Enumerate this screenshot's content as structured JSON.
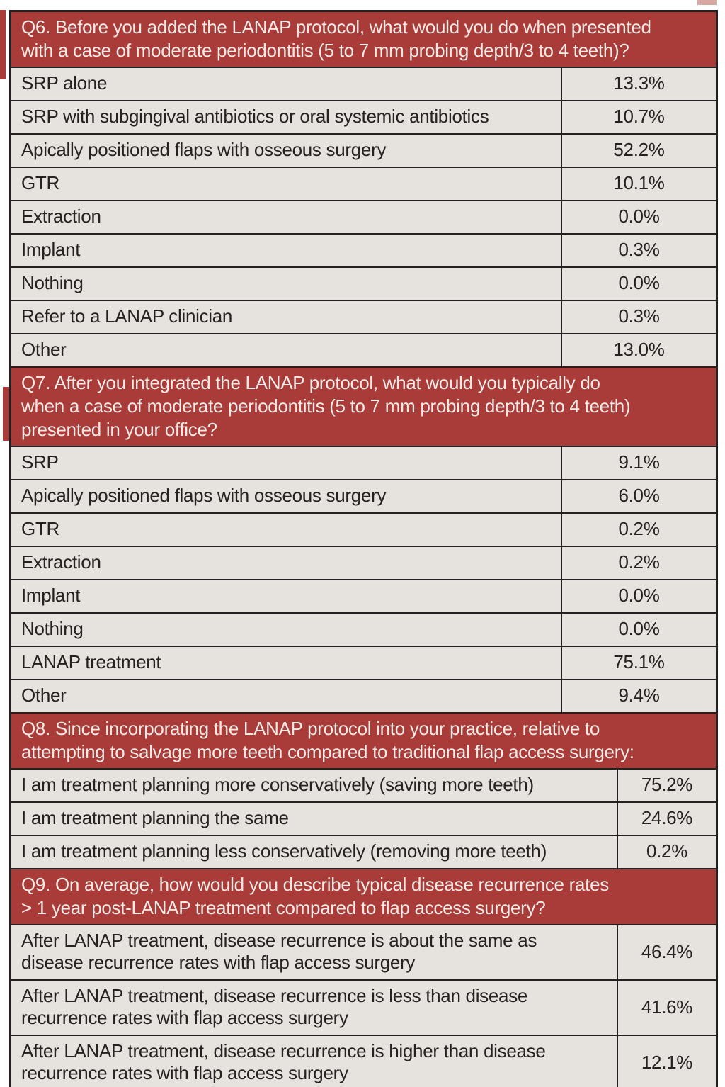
{
  "colors": {
    "header_bg": "#a93b38",
    "header_text": "#f3eae6",
    "row_bg": "#e6e2dd",
    "body_text": "#252220",
    "border": "#242021"
  },
  "table": {
    "sections": [
      {
        "id": "q6",
        "question_number": "Q6.",
        "question_text": "Before you added the LANAP protocol, what would you do when presented\nwith a case of moderate periodontitis (5 to 7 mm probing depth/3 to 4 teeth)?",
        "rows": [
          {
            "label": "SRP alone",
            "value": "13.3%"
          },
          {
            "label": "SRP with subgingival antibiotics or oral systemic antibiotics",
            "value": "10.7%"
          },
          {
            "label": "Apically positioned flaps with osseous surgery",
            "value": "52.2%"
          },
          {
            "label": "GTR",
            "value": "10.1%"
          },
          {
            "label": "Extraction",
            "value": "0.0%"
          },
          {
            "label": "Implant",
            "value": "0.3%"
          },
          {
            "label": "Nothing",
            "value": "0.0%"
          },
          {
            "label": "Refer to a LANAP clinician",
            "value": "0.3%"
          },
          {
            "label": "Other",
            "value": "13.0%"
          }
        ]
      },
      {
        "id": "q7",
        "question_number": "Q7.",
        "question_text": "After you integrated the LANAP protocol, what would you typically do\nwhen a case of moderate periodontitis (5 to 7 mm probing depth/3 to 4 teeth)\npresented in your office?",
        "rows": [
          {
            "label": "SRP",
            "value": "9.1%"
          },
          {
            "label": "Apically positioned flaps with osseous surgery",
            "value": "6.0%"
          },
          {
            "label": "GTR",
            "value": "0.2%"
          },
          {
            "label": "Extraction",
            "value": "0.2%"
          },
          {
            "label": "Implant",
            "value": "0.0%"
          },
          {
            "label": "Nothing",
            "value": "0.0%"
          },
          {
            "label": "LANAP treatment",
            "value": "75.1%"
          },
          {
            "label": "Other",
            "value": "9.4%"
          }
        ]
      },
      {
        "id": "q8",
        "question_number": "Q8.",
        "question_text": "Since incorporating the LANAP protocol into your practice, relative to\nattempting to salvage more teeth compared to traditional flap access surgery:",
        "rows": [
          {
            "label": "I am treatment planning more conservatively (saving more teeth)",
            "value": "75.2%"
          },
          {
            "label": "I am treatment planning the same",
            "value": "24.6%"
          },
          {
            "label": "I am treatment planning less conservatively (removing more teeth)",
            "value": "0.2%"
          }
        ]
      },
      {
        "id": "q9",
        "question_number": "Q9.",
        "question_text": "On average, how would you describe typical disease recurrence rates\n> 1 year post-LANAP treatment compared to flap access surgery?",
        "rows": [
          {
            "label": "After LANAP treatment, disease recurrence is about the same as\ndisease recurrence rates with flap access surgery",
            "value": "46.4%"
          },
          {
            "label": "After LANAP treatment, disease recurrence is less than disease\nrecurrence rates with flap access surgery",
            "value": "41.6%"
          },
          {
            "label": "After LANAP treatment, disease recurrence is higher than disease\nrecurrence rates with flap access surgery",
            "value": "12.1%"
          }
        ]
      }
    ]
  }
}
